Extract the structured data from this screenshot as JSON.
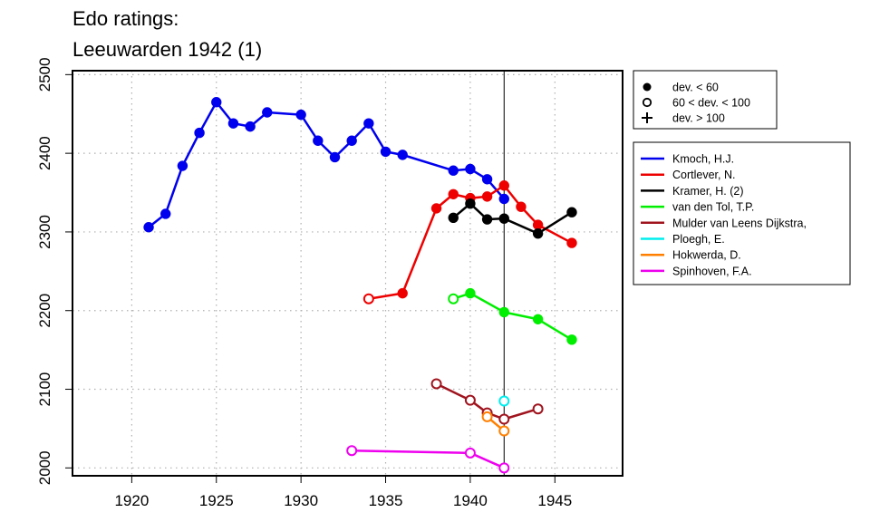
{
  "chart_data": {
    "type": "line",
    "title_lines": [
      "Edo ratings:",
      "Leeuwarden 1942 (1)"
    ],
    "xlabel": "",
    "ylabel": "",
    "xlim": [
      1916.5,
      1949
    ],
    "ylim": [
      1990,
      2505
    ],
    "x_ticks": [
      1920,
      1925,
      1930,
      1935,
      1940,
      1945
    ],
    "y_ticks": [
      2000,
      2100,
      2200,
      2300,
      2400,
      2500
    ],
    "grid": true,
    "reference_line_x": 1942,
    "marker_legend": [
      {
        "symbol": "filled-circle",
        "label": "dev. < 60"
      },
      {
        "symbol": "open-circle",
        "label": "60 < dev. < 100"
      },
      {
        "symbol": "plus",
        "label": "dev. > 100"
      }
    ],
    "legend_placement": "right",
    "series": [
      {
        "name": "Kmoch, H.J.",
        "color": "#0000ee",
        "x": [
          1921,
          1922,
          1923,
          1924,
          1925,
          1926,
          1927,
          1928,
          1930,
          1931,
          1932,
          1933,
          1934,
          1935,
          1936,
          1939,
          1940,
          1941,
          1942
        ],
        "y": [
          2306,
          2323,
          2384,
          2426,
          2465,
          2438,
          2434,
          2452,
          2449,
          2416,
          2395,
          2416,
          2438,
          2402,
          2398,
          2378,
          2380,
          2367,
          2342
        ],
        "markers": [
          "f",
          "f",
          "f",
          "f",
          "f",
          "f",
          "f",
          "f",
          "f",
          "f",
          "f",
          "f",
          "f",
          "f",
          "f",
          "f",
          "f",
          "f",
          "f"
        ]
      },
      {
        "name": "Cortlever, N.",
        "color": "#ee0000",
        "x": [
          1934,
          1936,
          1938,
          1939,
          1940,
          1941,
          1942,
          1943,
          1944,
          1946
        ],
        "y": [
          2215,
          2222,
          2330,
          2348,
          2343,
          2345,
          2359,
          2332,
          2309,
          2286
        ],
        "markers": [
          "o",
          "f",
          "f",
          "f",
          "f",
          "f",
          "f",
          "f",
          "f",
          "f"
        ]
      },
      {
        "name": "Kramer, H. (2)",
        "color": "#000000",
        "x": [
          1939,
          1940,
          1941,
          1942,
          1944,
          1946
        ],
        "y": [
          2318,
          2336,
          2316,
          2317,
          2298,
          2325
        ],
        "markers": [
          "f",
          "f",
          "f",
          "f",
          "f",
          "f"
        ]
      },
      {
        "name": "van den Tol, T.P.",
        "color": "#00ee00",
        "x": [
          1939,
          1940,
          1942,
          1944,
          1946
        ],
        "y": [
          2215,
          2222,
          2198,
          2189,
          2163
        ],
        "markers": [
          "o",
          "f",
          "f",
          "f",
          "f"
        ]
      },
      {
        "name": "Mulder van Leens Dijkstra,",
        "color": "#a0141e",
        "x": [
          1938,
          1940,
          1941,
          1942,
          1944
        ],
        "y": [
          2107,
          2086,
          2070,
          2062,
          2075
        ],
        "markers": [
          "o",
          "o",
          "o",
          "o",
          "o"
        ]
      },
      {
        "name": "Ploegh, E.",
        "color": "#00eeee",
        "x": [
          1942
        ],
        "y": [
          2085
        ],
        "markers": [
          "o"
        ]
      },
      {
        "name": "Hokwerda, D.",
        "color": "#ff7f00",
        "x": [
          1941,
          1942
        ],
        "y": [
          2065,
          2047
        ],
        "markers": [
          "o",
          "o"
        ]
      },
      {
        "name": "Spinhoven, F.A.",
        "color": "#ee00ee",
        "x": [
          1933,
          1940,
          1942
        ],
        "y": [
          2022,
          2019,
          2000
        ],
        "markers": [
          "o",
          "o",
          "o"
        ]
      }
    ]
  }
}
